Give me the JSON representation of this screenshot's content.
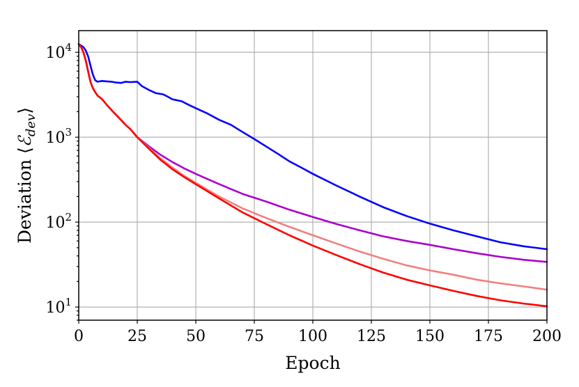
{
  "chart_data": {
    "type": "line",
    "title": "",
    "xlabel": "Epoch",
    "ylabel_prefix": "Deviation ⟨",
    "ylabel_math": "ℰ",
    "ylabel_sub": "dev",
    "ylabel_suffix": "⟩",
    "xlim": [
      0,
      200
    ],
    "ylim": [
      7,
      18000
    ],
    "yscale": "log",
    "grid": true,
    "x_ticks": [
      0,
      25,
      50,
      75,
      100,
      125,
      150,
      175,
      200
    ],
    "x_tick_labels": [
      "0",
      "25",
      "50",
      "75",
      "100",
      "125",
      "150",
      "175",
      "200"
    ],
    "y_ticks": [
      10,
      100,
      1000,
      10000
    ],
    "y_tick_labels": [
      {
        "base": "10",
        "exp": "1"
      },
      {
        "base": "10",
        "exp": "2"
      },
      {
        "base": "10",
        "exp": "3"
      },
      {
        "base": "10",
        "exp": "4"
      }
    ],
    "series": [
      {
        "color": "#0000ff",
        "x": [
          0,
          1,
          2,
          3,
          4,
          5,
          6,
          7,
          8,
          10,
          12,
          14,
          16,
          18,
          20,
          22,
          25,
          27,
          30,
          33,
          36,
          38,
          40,
          44,
          47,
          50,
          55,
          60,
          65,
          70,
          75,
          80,
          85,
          90,
          95,
          100,
          110,
          120,
          130,
          140,
          150,
          160,
          170,
          180,
          190,
          200
        ],
        "y": [
          12500,
          12000,
          11500,
          10500,
          9000,
          7000,
          5500,
          4700,
          4500,
          4600,
          4550,
          4500,
          4400,
          4350,
          4500,
          4450,
          4500,
          4000,
          3600,
          3300,
          3200,
          3000,
          2800,
          2650,
          2400,
          2200,
          1900,
          1600,
          1400,
          1150,
          950,
          780,
          640,
          520,
          440,
          370,
          270,
          200,
          150,
          118,
          96,
          80,
          68,
          58,
          52,
          48
        ]
      },
      {
        "color": "#aa00cc",
        "x": [
          0,
          1,
          2,
          3,
          4,
          5,
          6,
          7,
          8,
          10,
          12,
          15,
          18,
          20,
          22,
          25,
          30,
          35,
          40,
          45,
          50,
          60,
          70,
          80,
          90,
          100,
          110,
          120,
          130,
          140,
          150,
          160,
          170,
          180,
          190,
          200
        ],
        "y": [
          12500,
          11500,
          10000,
          8000,
          6000,
          4500,
          3800,
          3400,
          3100,
          2800,
          2400,
          1950,
          1600,
          1400,
          1250,
          1000,
          780,
          620,
          510,
          430,
          370,
          280,
          215,
          175,
          140,
          115,
          95,
          80,
          68,
          60,
          54,
          48,
          43,
          39,
          36,
          34
        ]
      },
      {
        "color": "#f08080",
        "x": [
          0,
          1,
          2,
          3,
          4,
          5,
          6,
          7,
          8,
          10,
          12,
          15,
          18,
          20,
          22,
          25,
          30,
          35,
          40,
          45,
          50,
          60,
          70,
          80,
          90,
          100,
          110,
          120,
          130,
          140,
          150,
          160,
          170,
          180,
          190,
          200
        ],
        "y": [
          12500,
          11500,
          10000,
          8000,
          6000,
          4500,
          3800,
          3400,
          3100,
          2800,
          2400,
          1950,
          1600,
          1400,
          1250,
          1000,
          750,
          560,
          440,
          350,
          290,
          200,
          145,
          112,
          88,
          70,
          56,
          45,
          37,
          31,
          27,
          24,
          21,
          19,
          17.5,
          16
        ]
      },
      {
        "color": "#ff0000",
        "x": [
          0,
          1,
          2,
          3,
          4,
          5,
          6,
          7,
          8,
          10,
          12,
          15,
          18,
          20,
          22,
          25,
          30,
          35,
          40,
          45,
          50,
          60,
          70,
          80,
          90,
          100,
          110,
          120,
          130,
          140,
          150,
          160,
          170,
          180,
          190,
          200
        ],
        "y": [
          12500,
          11500,
          10000,
          8000,
          6000,
          4500,
          3800,
          3400,
          3100,
          2800,
          2400,
          1950,
          1600,
          1400,
          1250,
          1000,
          730,
          540,
          420,
          340,
          280,
          190,
          130,
          95,
          70,
          53,
          41,
          32,
          25.5,
          21,
          18,
          15.5,
          13.5,
          12,
          11,
          10.2
        ]
      }
    ]
  }
}
